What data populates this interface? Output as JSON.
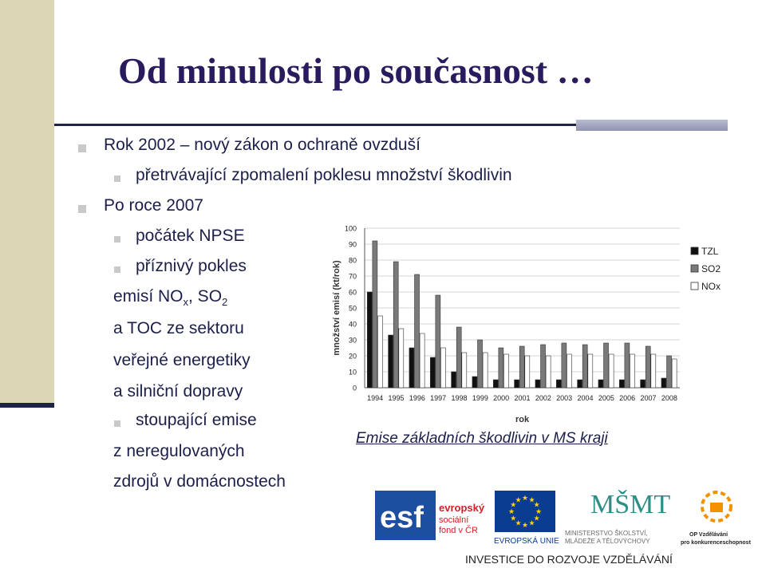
{
  "slide": {
    "title": "Od minulosti po současnost …",
    "bullets": {
      "b1": "Rok 2002 – nový zákon o ochraně ovzduší",
      "b1_1": "přetrvávající zpomalení poklesu množství škodlivin",
      "b2": "Po roce 2007",
      "b2_1": "počátek NPSE",
      "b2_2": "příznivý pokles",
      "b2_2_prefix": "emisí NO",
      "b2_2_sub_x": "x",
      "b2_2_mid": ", SO",
      "b2_2_sub_2": "2",
      "b2_2_line3": "a TOC ze sektoru",
      "b2_2_line4": "veřejné energetiky",
      "b2_2_line5": "a silniční dopravy",
      "b2_3": "stoupající emise",
      "b2_3_line2": "z neregulovaných",
      "b2_3_line3": "zdrojů v domácnostech"
    },
    "caption": "Emise základních škodlivin v MS kraji"
  },
  "logos": {
    "esf_mark": "esf",
    "esf_text": [
      "evropský",
      "sociální",
      "fond v ČR"
    ],
    "eu_text": "EVROPSKÁ UNIE",
    "msmt_mark": "MŠMT",
    "msmt_text": [
      "MINISTERSTVO ŠKOLSTVÍ,",
      "MLÁDEŽE A TĚLOVÝCHOVY"
    ],
    "op_text": [
      "OP Vzdělávání",
      "pro konkurenceschopnost"
    ],
    "bottom_text": "INVESTICE DO ROZVOJE VZDĚLÁVÁNÍ"
  },
  "colors": {
    "title": "#2a1a5e",
    "text": "#1b1f4a",
    "band": "#ddd6b4",
    "rule": "#1e2448",
    "esf_blue": "#1d4fa0",
    "esf_red": "#d42027",
    "eu_blue": "#0a3d91",
    "eu_star": "#ffd400",
    "msmt_teal": "#2b8f86",
    "op_orange": "#f39200"
  },
  "chart_data": {
    "type": "bar",
    "title": "",
    "xlabel": "rok",
    "ylabel": "množství emisí (kt/rok)",
    "ylim": [
      0,
      100
    ],
    "yticks": [
      0,
      10,
      20,
      30,
      40,
      50,
      60,
      70,
      80,
      90,
      100
    ],
    "grid": true,
    "legend": "right",
    "categories": [
      "1994",
      "1995",
      "1996",
      "1997",
      "1998",
      "1999",
      "2000",
      "2001",
      "2002",
      "2003",
      "2004",
      "2005",
      "2006",
      "2007",
      "2008"
    ],
    "series": [
      {
        "name": "TZL",
        "color": "#111111",
        "values": [
          60,
          33,
          25,
          19,
          10,
          7,
          5,
          5,
          5,
          5,
          5,
          5,
          5,
          5,
          6
        ]
      },
      {
        "name": "SO2",
        "color": "#7a7a7a",
        "values": [
          92,
          79,
          71,
          58,
          38,
          30,
          25,
          26,
          27,
          28,
          27,
          28,
          28,
          26,
          20
        ]
      },
      {
        "name": "NOx",
        "color": "#ffffff",
        "values": [
          45,
          37,
          34,
          25,
          22,
          22,
          21,
          20,
          20,
          21,
          21,
          21,
          21,
          21,
          18
        ]
      }
    ]
  }
}
